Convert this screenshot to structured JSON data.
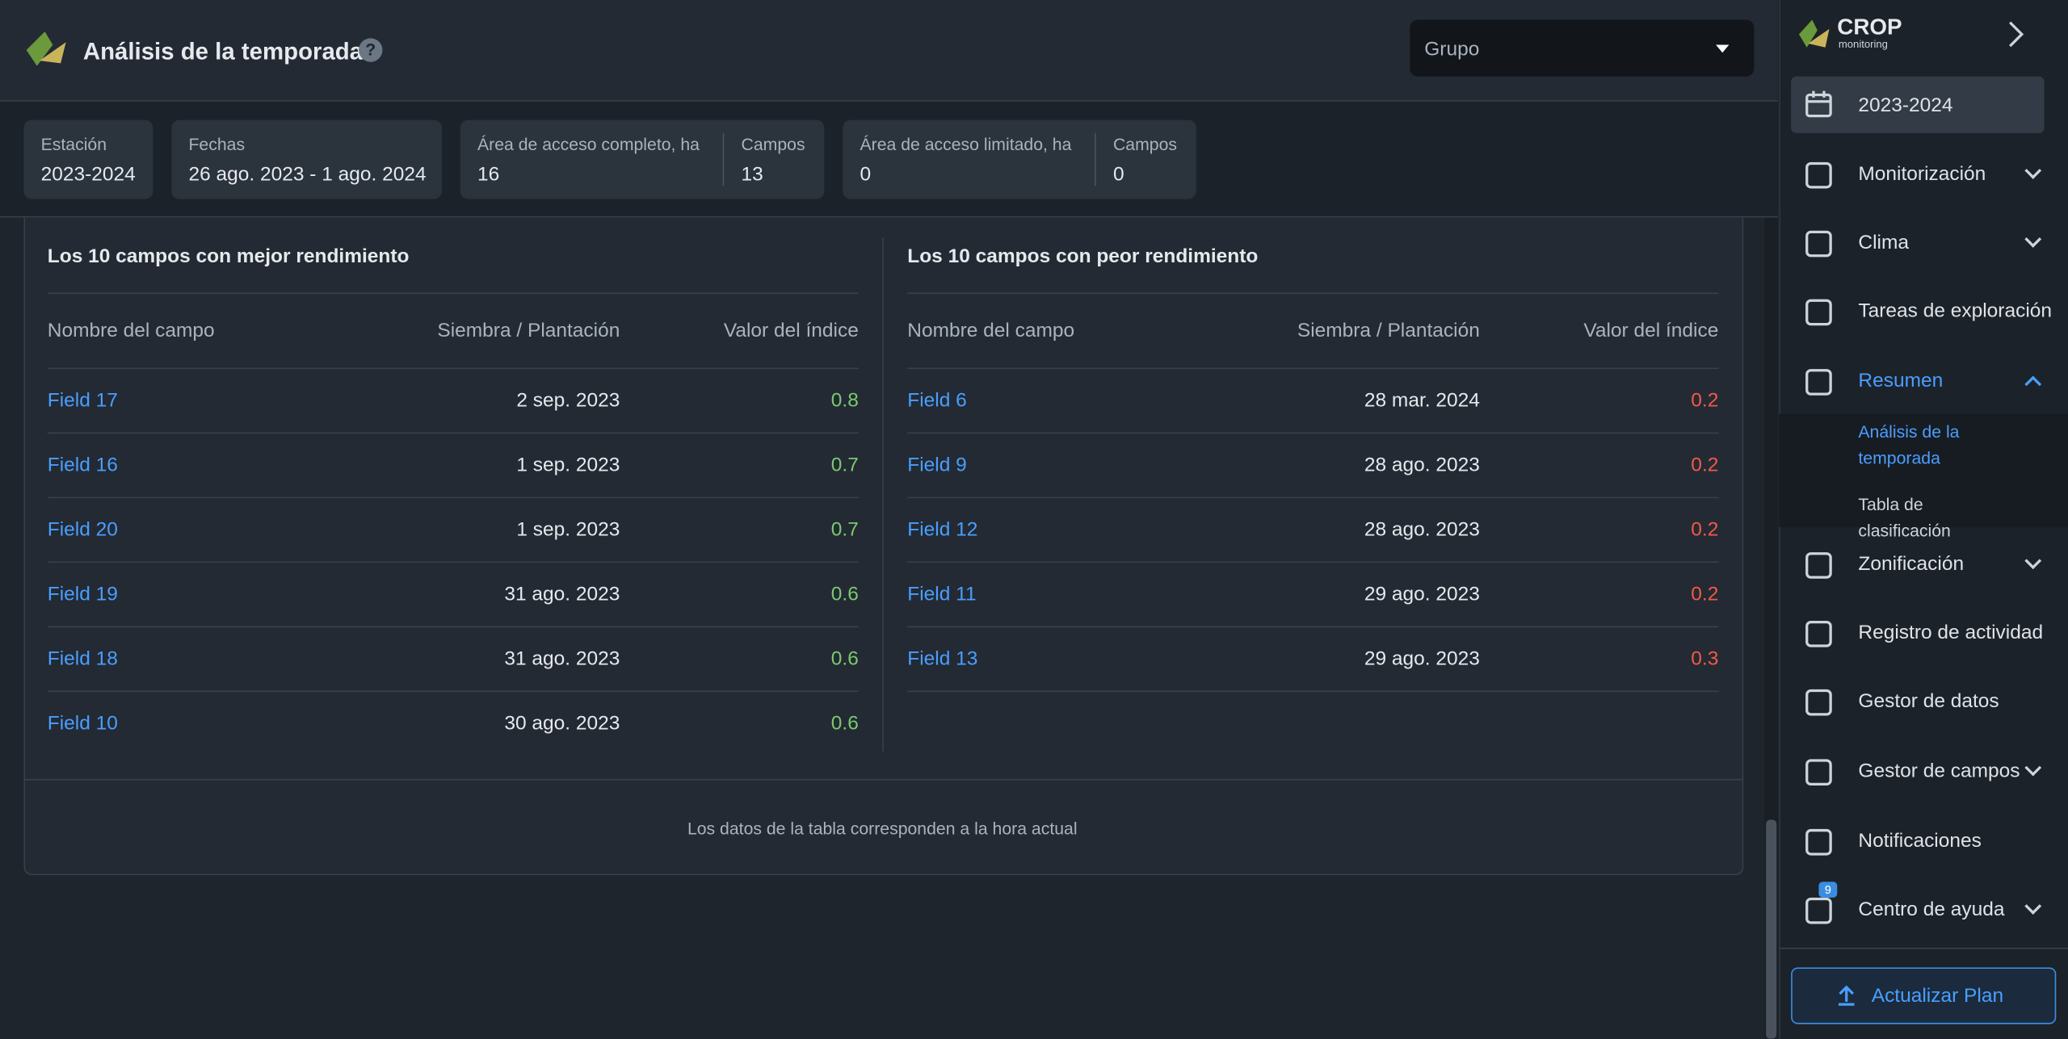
{
  "header": {
    "title": "Análisis de la temporada",
    "help": "?",
    "group_placeholder": "Grupo"
  },
  "summary": [
    [
      {
        "label": "Estación",
        "value": "2023-2024"
      }
    ],
    [
      {
        "label": "Fechas",
        "value": "26 ago. 2023 - 1 ago. 2024"
      }
    ],
    [
      {
        "label": "Área de acceso completo, ha",
        "value": "16"
      },
      {
        "label": "Campos",
        "value": "13"
      }
    ],
    [
      {
        "label": "Área de acceso limitado, ha",
        "value": "0"
      },
      {
        "label": "Campos",
        "value": "0"
      }
    ]
  ],
  "tables": [
    {
      "title": "Los 10 campos con mejor rendimiento",
      "columns": [
        "Nombre del campo",
        "Siembra / Plantación",
        "Valor del índice"
      ],
      "rows": [
        [
          "Field 17",
          "2 sep. 2023",
          "0.8"
        ],
        [
          "Field 16",
          "1 sep. 2023",
          "0.7"
        ],
        [
          "Field 20",
          "1 sep. 2023",
          "0.7"
        ],
        [
          "Field 19",
          "31 ago. 2023",
          "0.6"
        ],
        [
          "Field 18",
          "31 ago. 2023",
          "0.6"
        ],
        [
          "Field 10",
          "30 ago. 2023",
          "0.6"
        ]
      ]
    },
    {
      "title": "Los 10 campos con peor rendimiento",
      "columns": [
        "Nombre del campo",
        "Siembra / Plantación",
        "Valor del índice"
      ],
      "rows": [
        [
          "Field 6",
          "28 mar. 2024",
          "0.2"
        ],
        [
          "Field 9",
          "28 ago. 2023",
          "0.2"
        ],
        [
          "Field 12",
          "28 ago. 2023",
          "0.2"
        ],
        [
          "Field 11",
          "29 ago. 2023",
          "0.2"
        ],
        [
          "Field 13",
          "29 ago. 2023",
          "0.3"
        ]
      ]
    }
  ],
  "footnote": "Los datos de la tabla corresponden a la hora actual",
  "sidebar": {
    "brand": "CROP",
    "brand_sub": "monitoring",
    "season": "2023-2024",
    "items_top": [
      "Monitorización",
      "Clima",
      "Tareas de exploración",
      "Resumen"
    ],
    "submenu": [
      "Análisis de la temporada",
      "Tabla de clasificación"
    ],
    "items_bottom": [
      "Zonificación",
      "Registro de actividad",
      "Gestor de datos",
      "Gestor de campos",
      "Notificaciones",
      "Centro de ayuda"
    ],
    "help_badge": "9",
    "upgrade": "Actualizar Plan"
  }
}
